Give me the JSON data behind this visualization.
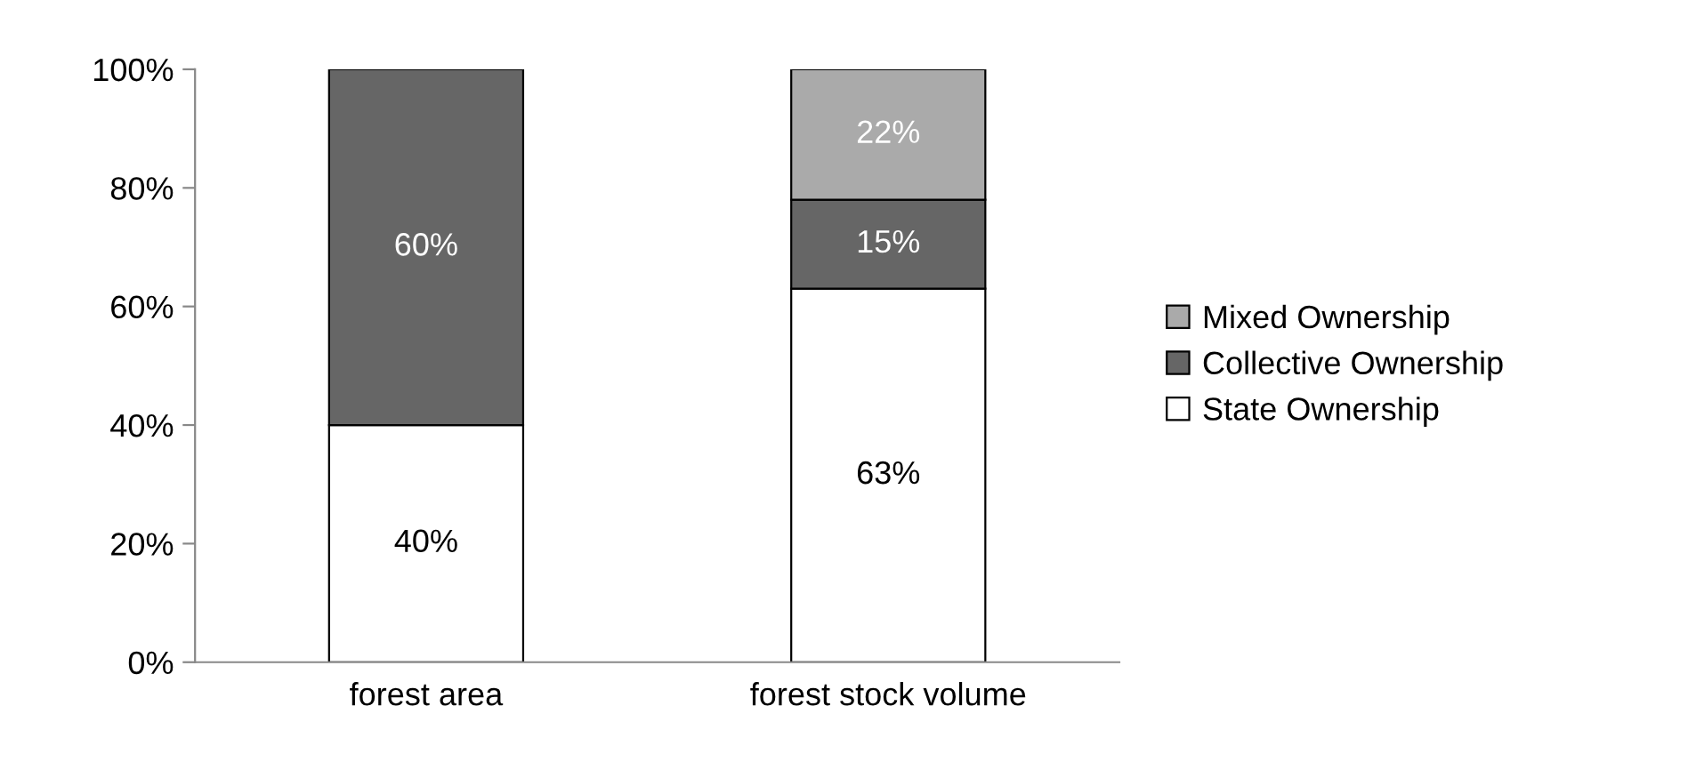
{
  "chart_data": {
    "type": "bar",
    "stacked": true,
    "categories": [
      "forest area",
      "forest stock volume"
    ],
    "series": [
      {
        "name": "State Ownership",
        "color": "#ffffff",
        "values": [
          40,
          63
        ],
        "value_labels": [
          "40%",
          "63%"
        ]
      },
      {
        "name": "Collective Ownership",
        "color": "#666666",
        "values": [
          60,
          15
        ],
        "value_labels": [
          "60%",
          "15%"
        ]
      },
      {
        "name": "Mixed Ownership",
        "color": "#aaaaaa",
        "values": [
          null,
          22
        ],
        "value_labels": [
          null,
          "22%"
        ]
      }
    ],
    "ylim": [
      0,
      100
    ],
    "yticks": [
      {
        "value": 0,
        "label": "0%"
      },
      {
        "value": 20,
        "label": "20%"
      },
      {
        "value": 40,
        "label": "40%"
      },
      {
        "value": 60,
        "label": "60%"
      },
      {
        "value": 80,
        "label": "80%"
      },
      {
        "value": 100,
        "label": "100%"
      }
    ],
    "grid": false,
    "legend": "right"
  }
}
